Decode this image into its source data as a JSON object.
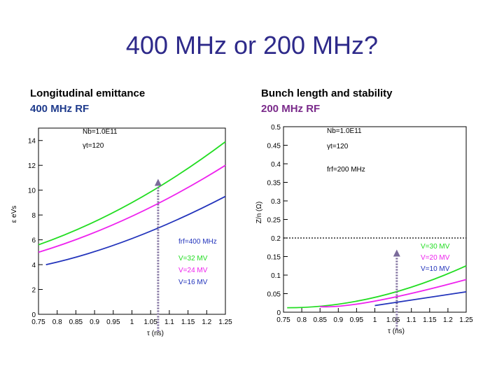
{
  "slide": {
    "title": "400 MHz or 200 MHz?"
  },
  "left_caption": {
    "line1": "Longitudinal emittance",
    "line2": "400 MHz RF",
    "accent": "#1f3b8c"
  },
  "right_caption": {
    "line1": "Bunch length and stability",
    "line2": "200 MHz RF",
    "accent": "#7a2a8a"
  },
  "chart_data": [
    {
      "type": "line",
      "xlabel": "τ (ns)",
      "ylabel": "ε eVs",
      "xlim": [
        0.75,
        1.25
      ],
      "ylim": [
        0,
        15
      ],
      "xticks": [
        "0.75",
        "0.8",
        "0.85",
        "0.9",
        "0.95",
        "1",
        "1.05",
        "1.1",
        "1.15",
        "1.2",
        "1.25"
      ],
      "yticks": [
        "0",
        "2",
        "4",
        "6",
        "8",
        "10",
        "12",
        "14"
      ],
      "annotations_top": [
        "Nb=1.0E11",
        "γt=120"
      ],
      "annotations_bottom": [
        "frf=400 MHz"
      ],
      "marker_x": 1.07,
      "marker_y_top": 10.8,
      "series": [
        {
          "name": "V=32 MV",
          "color": "#22dd22",
          "x": [
            0.75,
            1.0,
            1.25
          ],
          "y": [
            5.6,
            9.0,
            13.9
          ]
        },
        {
          "name": "V=24 MV",
          "color": "#ee22ee",
          "x": [
            0.75,
            1.0,
            1.25
          ],
          "y": [
            5.0,
            7.9,
            12.0
          ]
        },
        {
          "name": "V=16 MV",
          "color": "#2233bb",
          "x": [
            0.77,
            1.0,
            1.25
          ],
          "y": [
            4.0,
            6.1,
            9.5
          ]
        }
      ]
    },
    {
      "type": "line",
      "xlabel": "τ (ns)",
      "ylabel": "Z/n (Ω)",
      "xlim": [
        0.75,
        1.25
      ],
      "ylim": [
        0,
        0.5
      ],
      "xticks": [
        "0.75",
        "0.8",
        "0.85",
        "0.9",
        "0.95",
        "1",
        "1.05",
        "1.1",
        "1.15",
        "1.2",
        "1.25"
      ],
      "yticks": [
        "0",
        "0.05",
        "0.1",
        "0.15",
        "0.2",
        "0.25",
        "0.3",
        "0.35",
        "0.4",
        "0.45",
        "0.5"
      ],
      "annotations_top": [
        "Nb=1.0E11",
        "γt=120",
        "frf=200 MHz"
      ],
      "threshold": 0.2,
      "marker_x": 1.06,
      "marker_y_top": 0.165,
      "series": [
        {
          "name": "V=30 MV",
          "color": "#22dd22",
          "x": [
            0.76,
            1.0,
            1.25
          ],
          "y": [
            0.012,
            0.04,
            0.125
          ]
        },
        {
          "name": "V=20 MV",
          "color": "#ee22ee",
          "x": [
            0.85,
            1.0,
            1.25
          ],
          "y": [
            0.015,
            0.03,
            0.088
          ]
        },
        {
          "name": "V=10 MV",
          "color": "#2233bb",
          "x": [
            1.0,
            1.25
          ],
          "y": [
            0.018,
            0.055
          ]
        }
      ]
    }
  ]
}
